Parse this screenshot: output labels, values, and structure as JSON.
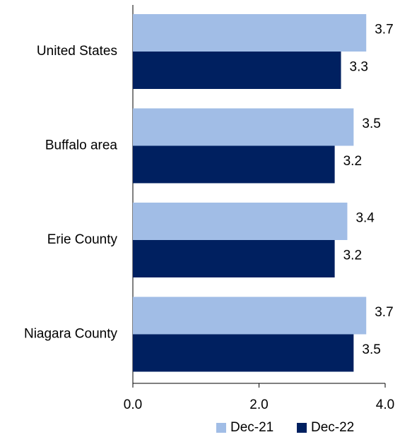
{
  "chart_data": {
    "type": "bar",
    "orientation": "horizontal",
    "categories": [
      "United States",
      "Buffalo area",
      "Erie County",
      "Niagara County"
    ],
    "series": [
      {
        "name": "Dec-21",
        "color": "#a1bde6",
        "values": [
          3.7,
          3.5,
          3.4,
          3.7
        ]
      },
      {
        "name": "Dec-22",
        "color": "#002060",
        "values": [
          3.3,
          3.2,
          3.2,
          3.5
        ]
      }
    ],
    "xlim": [
      0,
      4
    ],
    "xticks": [
      {
        "value": 0,
        "label": "0.0"
      },
      {
        "value": 2,
        "label": "2.0"
      },
      {
        "value": 4,
        "label": "4.0"
      }
    ],
    "grid": false,
    "legend": "bottom"
  }
}
